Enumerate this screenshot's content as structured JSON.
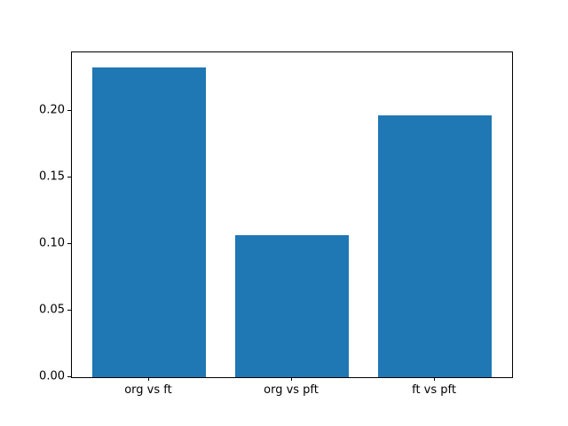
{
  "chart_data": {
    "type": "bar",
    "title": "",
    "xlabel": "",
    "ylabel": "",
    "categories": [
      "org vs ft",
      "org vs pft",
      "ft vs pft"
    ],
    "values": [
      0.233,
      0.107,
      0.197
    ],
    "bar_color": "#1f77b4",
    "bar_width": 0.8,
    "ylim": [
      0,
      0.244
    ],
    "yticks": [
      0.0,
      0.05,
      0.1,
      0.15,
      0.2
    ],
    "ytick_labels": [
      "0.00",
      "0.05",
      "0.10",
      "0.15",
      "0.20"
    ],
    "grid": false,
    "legend": false,
    "spine_color": "#000000",
    "background_color": "#ffffff"
  }
}
